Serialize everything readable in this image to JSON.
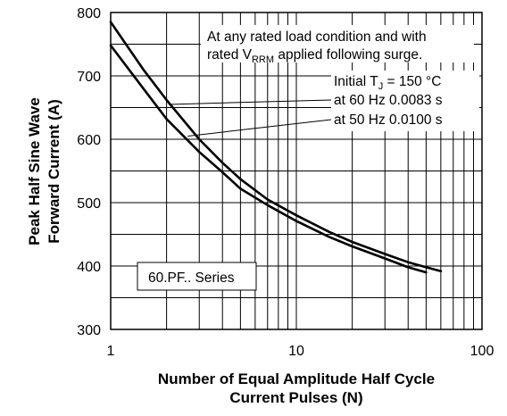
{
  "chart_data": {
    "type": "line",
    "xscale": "log",
    "xlim": [
      1,
      100
    ],
    "ylim": [
      300,
      800
    ],
    "grid": true,
    "x_ticks": [
      1,
      10,
      100
    ],
    "x_tick_labels": [
      "1",
      "10",
      "100"
    ],
    "y_ticks": [
      300,
      400,
      500,
      600,
      700,
      800
    ],
    "y_tick_labels": [
      "300",
      "400",
      "500",
      "600",
      "700",
      "800"
    ],
    "xlabel_line1": "Number of Equal Amplitude Half Cycle",
    "xlabel_line2": "Current Pulses (N)",
    "ylabel_line1": "Peak Half Sine Wave",
    "ylabel_line2": "Forward Current (A)",
    "series": [
      {
        "name": "at 60 Hz 0.0083 s",
        "x": [
          1,
          1.5,
          2,
          3,
          4,
          5,
          7,
          10,
          15,
          20,
          30,
          40,
          50,
          60
        ],
        "y": [
          785,
          710,
          662,
          600,
          563,
          537,
          505,
          480,
          454,
          438,
          419,
          406,
          398,
          392
        ]
      },
      {
        "name": "at 50 Hz 0.0100 s",
        "x": [
          1,
          1.5,
          2,
          3,
          4,
          5,
          7,
          10,
          15,
          20,
          30,
          40,
          50
        ],
        "y": [
          748,
          680,
          632,
          580,
          548,
          522,
          496,
          471,
          446,
          431,
          412,
          398,
          390
        ]
      }
    ],
    "annotations": {
      "condition_line1": "At any rated load condition and with",
      "condition_line2_a": "rated V",
      "condition_line2_sub": "RRM",
      "condition_line2_b": " applied following surge.",
      "initial_a": "Initial T",
      "initial_sub": "J",
      "initial_b": " = 150 °C",
      "series_label": "60.PF.. Series"
    }
  }
}
